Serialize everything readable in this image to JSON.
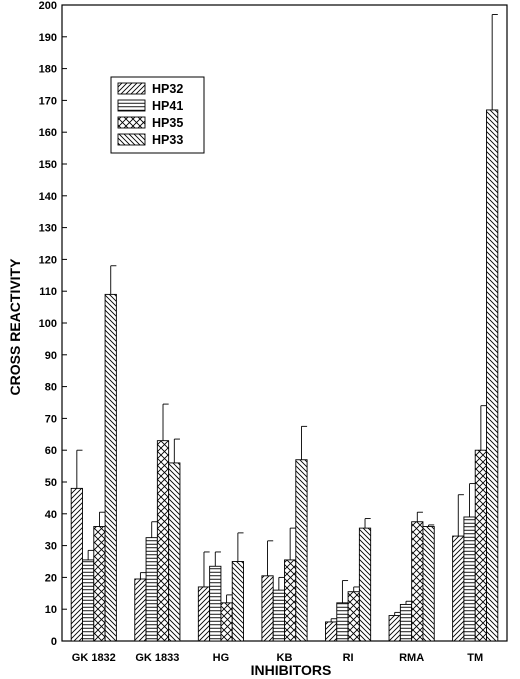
{
  "chart_data": {
    "type": "bar",
    "title": "",
    "xlabel": "INHIBITORS",
    "ylabel": "CROSS REACTIVITY",
    "ylim": [
      0,
      200
    ],
    "yticks": [
      0,
      10,
      20,
      30,
      40,
      50,
      60,
      70,
      80,
      90,
      100,
      110,
      120,
      130,
      140,
      150,
      160,
      170,
      180,
      190,
      200
    ],
    "categories": [
      "GK 1832",
      "GK 1833",
      "HG",
      "KB",
      "RI",
      "RMA",
      "TM"
    ],
    "legend_position": "top-left",
    "grid": false,
    "error_bars": "upper",
    "series": [
      {
        "name": "HP32",
        "pattern": "diagonal-up",
        "values": [
          48,
          19.5,
          17,
          20.5,
          6,
          8,
          33
        ],
        "errors": [
          12,
          2,
          11,
          11,
          1,
          1,
          13
        ]
      },
      {
        "name": "HP41",
        "pattern": "horizontal",
        "values": [
          25.5,
          32.5,
          23.5,
          16,
          12,
          11.5,
          39
        ],
        "errors": [
          3,
          5,
          4.5,
          4,
          7,
          1,
          10.5
        ]
      },
      {
        "name": "HP35",
        "pattern": "crosshatch",
        "values": [
          36,
          63,
          12,
          25.5,
          15.5,
          37.5,
          60
        ],
        "errors": [
          4.5,
          11.5,
          2.5,
          10,
          1.5,
          3,
          14
        ]
      },
      {
        "name": "HP33",
        "pattern": "diagonal-down",
        "values": [
          109,
          56,
          25,
          57,
          35.5,
          36,
          167
        ],
        "errors": [
          9,
          7.5,
          9,
          10.5,
          3,
          0.5,
          30
        ]
      }
    ]
  }
}
